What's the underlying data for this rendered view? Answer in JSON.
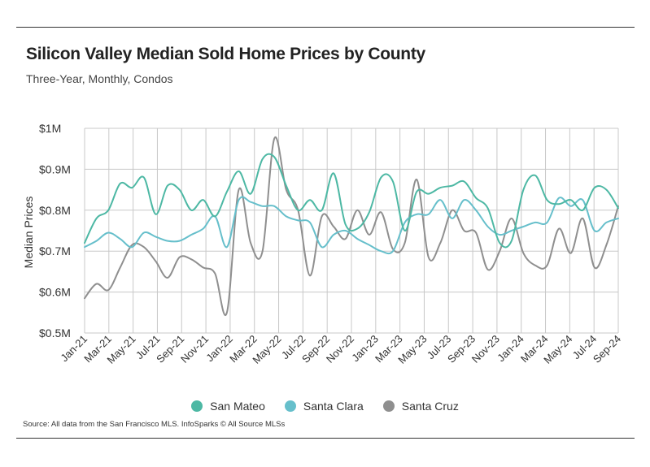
{
  "chart_data": {
    "type": "line",
    "title": "Silicon Valley Median Sold Home Prices by County",
    "subtitle": "Three-Year, Monthly, Condos",
    "ylabel": "Median Prices",
    "xlabel": "",
    "ylim": [
      0.5,
      1.0
    ],
    "y_ticks": [
      {
        "value": 1.0,
        "label": "$1M"
      },
      {
        "value": 0.9,
        "label": "$0.9M"
      },
      {
        "value": 0.8,
        "label": "$0.8M"
      },
      {
        "value": 0.7,
        "label": "$0.7M"
      },
      {
        "value": 0.6,
        "label": "$0.6M"
      },
      {
        "value": 0.5,
        "label": "$0.5M"
      }
    ],
    "x_tick_labels": [
      "Jan-21",
      "Mar-21",
      "May-21",
      "Jul-21",
      "Sep-21",
      "Nov-21",
      "Jan-22",
      "Mar-22",
      "May-22",
      "Jul-22",
      "Sep-22",
      "Nov-22",
      "Jan-23",
      "Mar-23",
      "May-23",
      "Jul-23",
      "Sep-23",
      "Nov-23",
      "Jan-24",
      "Mar-24",
      "May-24",
      "Jul-24",
      "Sep-24"
    ],
    "grid": "vertical and horizontal",
    "legend_position": "bottom",
    "series": [
      {
        "name": "San Mateo",
        "color": "#4DB8A4",
        "values": [
          0.72,
          0.78,
          0.8,
          0.865,
          0.855,
          0.88,
          0.79,
          0.86,
          0.85,
          0.8,
          0.825,
          0.785,
          0.845,
          0.895,
          0.84,
          0.925,
          0.93,
          0.86,
          0.8,
          0.825,
          0.8,
          0.89,
          0.765,
          0.755,
          0.795,
          0.88,
          0.87,
          0.75,
          0.845,
          0.84,
          0.855,
          0.86,
          0.87,
          0.83,
          0.805,
          0.72,
          0.725,
          0.85,
          0.885,
          0.825,
          0.815,
          0.825,
          0.8,
          0.855,
          0.85,
          0.805
        ]
      },
      {
        "name": "Santa Clara",
        "color": "#66BFCB",
        "values": [
          0.71,
          0.725,
          0.745,
          0.73,
          0.71,
          0.745,
          0.735,
          0.725,
          0.725,
          0.74,
          0.755,
          0.785,
          0.71,
          0.825,
          0.82,
          0.81,
          0.81,
          0.785,
          0.775,
          0.77,
          0.71,
          0.74,
          0.75,
          0.73,
          0.715,
          0.7,
          0.7,
          0.77,
          0.79,
          0.79,
          0.825,
          0.78,
          0.825,
          0.8,
          0.76,
          0.74,
          0.75,
          0.76,
          0.77,
          0.77,
          0.83,
          0.81,
          0.825,
          0.75,
          0.77,
          0.78
        ]
      },
      {
        "name": "Santa Cruz",
        "color": "#8F8F8F",
        "values": [
          0.585,
          0.62,
          0.605,
          0.66,
          0.715,
          0.71,
          0.675,
          0.635,
          0.685,
          0.68,
          0.66,
          0.645,
          0.55,
          0.85,
          0.72,
          0.7,
          0.975,
          0.85,
          0.8,
          0.64,
          0.785,
          0.76,
          0.73,
          0.8,
          0.74,
          0.795,
          0.705,
          0.72,
          0.875,
          0.685,
          0.72,
          0.8,
          0.75,
          0.745,
          0.655,
          0.7,
          0.78,
          0.695,
          0.665,
          0.665,
          0.755,
          0.695,
          0.78,
          0.66,
          0.715,
          0.81
        ]
      }
    ]
  },
  "source": "Source:  All data from the San Francisco MLS. InfoSparks © All Source MLSs"
}
